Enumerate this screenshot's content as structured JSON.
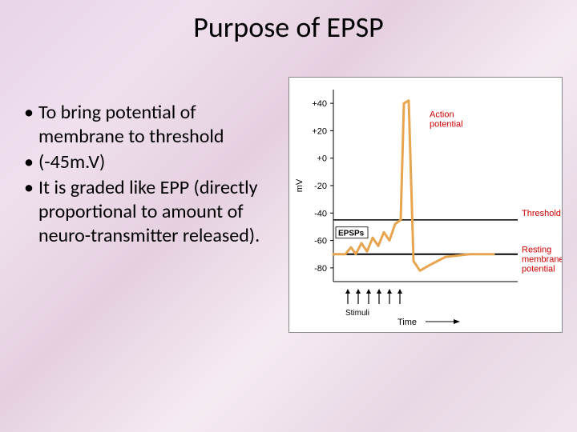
{
  "title": "Purpose of EPSP",
  "bullets": [
    "To bring potential of membrane to threshold",
    "(-45m.V)",
    "It is graded like EPP (directly proportional to amount of neuro-transmitter released)."
  ],
  "chart": {
    "type": "line",
    "y_axis": {
      "label": "mV",
      "label_fontsize": 11,
      "ticks": [
        -80,
        -60,
        -40,
        -20,
        0,
        20,
        40
      ],
      "min": -90,
      "max": 50
    },
    "x_axis": {
      "label": "Time",
      "arrow": true
    },
    "threshold_line": {
      "y": -45,
      "color": "#000000",
      "width": 1.5,
      "label": "Threshold"
    },
    "resting_line": {
      "y": -70,
      "color": "#000000",
      "width": 2,
      "label": "Resting membrane potential"
    },
    "epsps_label": {
      "text": "EPSPs",
      "boxed": true
    },
    "stimuli": {
      "label": "Stimuli",
      "arrows": 6
    },
    "action_potential_label": "Action potential",
    "trace": {
      "color": "#e8a550",
      "width": 3,
      "points": [
        [
          0,
          -70
        ],
        [
          15,
          -70
        ],
        [
          22,
          -65
        ],
        [
          28,
          -70
        ],
        [
          35,
          -62
        ],
        [
          42,
          -68
        ],
        [
          49,
          -58
        ],
        [
          56,
          -64
        ],
        [
          63,
          -54
        ],
        [
          70,
          -60
        ],
        [
          77,
          -48
        ],
        [
          84,
          -45
        ],
        [
          88,
          40
        ],
        [
          94,
          42
        ],
        [
          100,
          -75
        ],
        [
          108,
          -82
        ],
        [
          120,
          -78
        ],
        [
          140,
          -72
        ],
        [
          170,
          -70
        ],
        [
          200,
          -70
        ]
      ]
    },
    "background_color": "#ffffff",
    "axis_color": "#000000"
  }
}
